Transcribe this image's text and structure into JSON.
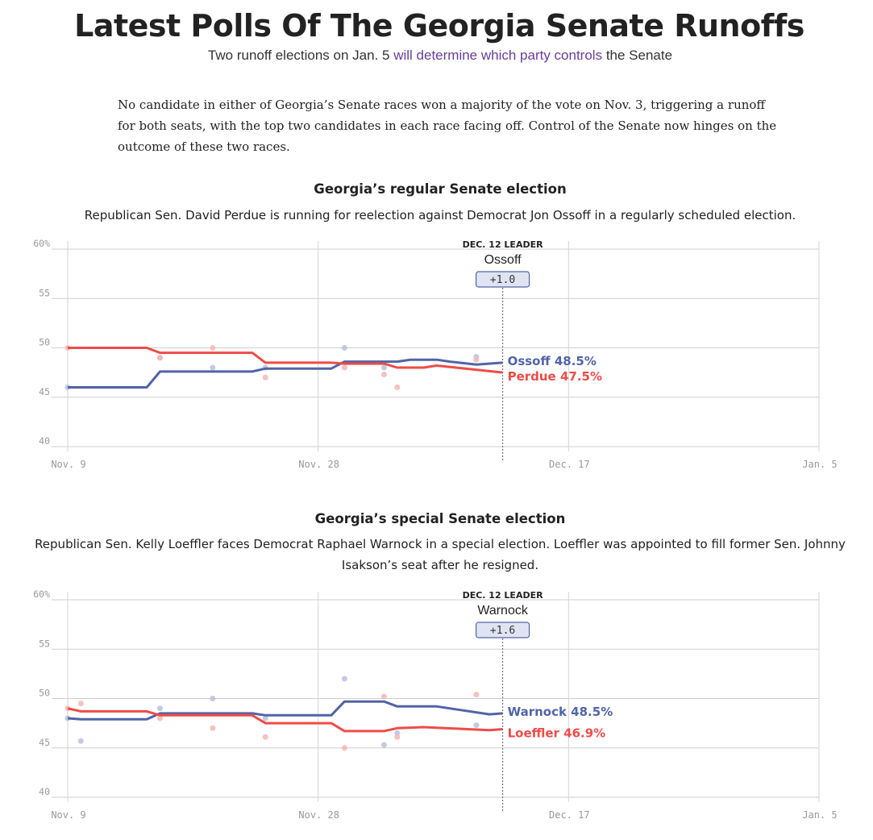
{
  "page": {
    "title": "Latest Polls Of The Georgia Senate Runoffs",
    "subtitle_before": "Two runoff elections on Jan. 5 ",
    "subtitle_link": "will determine which party controls",
    "subtitle_after": " the Senate",
    "intro": "No candidate in either of Georgia’s Senate races won a majority of the vote on Nov. 3, triggering a runoff for both seats, with the top two candidates in each race facing off. Control of the Senate now hinges on the outcome of these two races."
  },
  "colors": {
    "dem": "#5064a8",
    "rep": "#ee4c48",
    "dem_dot": "#b8c1e0",
    "rep_dot": "#f7b6b4"
  },
  "chart_data": [
    {
      "type": "line",
      "title": "Georgia’s regular Senate election",
      "description": "Republican Sen. David Perdue is running for reelection against Democrat Jon Ossoff in a regularly scheduled election.",
      "xlabel": "",
      "ylabel": "",
      "x_range_days": [
        0,
        57
      ],
      "x_ticks": [
        {
          "day": 0,
          "label": "Nov. 9"
        },
        {
          "day": 19,
          "label": "Nov. 28"
        },
        {
          "day": 38,
          "label": "Dec. 17"
        },
        {
          "day": 57,
          "label": "Jan. 5"
        }
      ],
      "ylim": [
        40,
        60
      ],
      "y_ticks": [
        {
          "value": 60,
          "label": "60%"
        },
        {
          "value": 55,
          "label": "55"
        },
        {
          "value": 50,
          "label": "50"
        },
        {
          "value": 45,
          "label": "45"
        },
        {
          "value": 40,
          "label": "40"
        }
      ],
      "grid": true,
      "leader": {
        "day": 33,
        "heading": "DEC. 12 LEADER",
        "name": "Ossoff",
        "margin": "+1.0"
      },
      "series": [
        {
          "name": "Ossoff",
          "party": "dem",
          "end_label": "Ossoff 48.5%",
          "x": [
            0,
            6,
            7,
            14,
            15,
            20,
            21,
            25,
            26,
            28,
            29,
            31,
            33
          ],
          "values": [
            46,
            46,
            47.6,
            47.6,
            47.9,
            47.9,
            48.6,
            48.6,
            48.8,
            48.8,
            48.6,
            48.3,
            48.5
          ]
        },
        {
          "name": "Perdue",
          "party": "rep",
          "end_label": "Perdue 47.5%",
          "x": [
            0,
            6,
            7,
            14,
            15,
            20,
            21,
            24,
            25,
            27,
            28,
            33
          ],
          "values": [
            50,
            50,
            49.5,
            49.5,
            48.5,
            48.5,
            48.4,
            48.4,
            48,
            48,
            48.2,
            47.5
          ]
        }
      ],
      "polls": [
        {
          "party": "dem",
          "x": [
            0,
            7,
            11,
            15,
            21,
            24,
            31
          ],
          "values": [
            46,
            49,
            48,
            48,
            50,
            48,
            49.1
          ]
        },
        {
          "party": "rep",
          "x": [
            0,
            7,
            11,
            15,
            21,
            24,
            25,
            31
          ],
          "values": [
            50,
            49,
            50,
            47,
            48,
            47.3,
            46,
            48.8
          ]
        }
      ]
    },
    {
      "type": "line",
      "title": "Georgia’s special Senate election",
      "description": "Republican Sen. Kelly Loeffler faces Democrat Raphael Warnock in a special election. Loeffler was appointed to fill former Sen. Johnny Isakson’s seat after he resigned.",
      "xlabel": "",
      "ylabel": "",
      "x_range_days": [
        0,
        57
      ],
      "x_ticks": [
        {
          "day": 0,
          "label": "Nov. 9"
        },
        {
          "day": 19,
          "label": "Nov. 28"
        },
        {
          "day": 38,
          "label": "Dec. 17"
        },
        {
          "day": 57,
          "label": "Jan. 5"
        }
      ],
      "ylim": [
        40,
        60
      ],
      "y_ticks": [
        {
          "value": 60,
          "label": "60%"
        },
        {
          "value": 55,
          "label": "55"
        },
        {
          "value": 50,
          "label": "50"
        },
        {
          "value": 45,
          "label": "45"
        },
        {
          "value": 40,
          "label": "40"
        }
      ],
      "grid": true,
      "leader": {
        "day": 33,
        "heading": "DEC. 12 LEADER",
        "name": "Warnock",
        "margin": "+1.6"
      },
      "series": [
        {
          "name": "Warnock",
          "party": "dem",
          "end_label": "Warnock 48.5%",
          "x": [
            0,
            1,
            6,
            7,
            14,
            15,
            20,
            21,
            24,
            25,
            28,
            32,
            33
          ],
          "values": [
            48,
            47.9,
            47.9,
            48.5,
            48.5,
            48.3,
            48.3,
            49.7,
            49.7,
            49.2,
            49.2,
            48.4,
            48.5
          ]
        },
        {
          "name": "Loeffler",
          "party": "rep",
          "end_label": "Loeffler 46.9%",
          "x": [
            0,
            1,
            6,
            7,
            14,
            15,
            20,
            21,
            24,
            25,
            27,
            32,
            33
          ],
          "values": [
            49,
            48.7,
            48.7,
            48.3,
            48.3,
            47.5,
            47.5,
            46.7,
            46.7,
            47,
            47.1,
            46.8,
            46.9
          ]
        }
      ],
      "polls": [
        {
          "party": "dem",
          "x": [
            0,
            1,
            7,
            11,
            15,
            21,
            24,
            25,
            31
          ],
          "values": [
            48,
            45.7,
            49,
            50,
            48,
            52,
            45.3,
            46.5,
            47.3
          ]
        },
        {
          "party": "rep",
          "x": [
            0,
            1,
            7,
            11,
            15,
            21,
            24,
            25,
            31
          ],
          "values": [
            49,
            49.5,
            48,
            47,
            46.1,
            45,
            50.2,
            46.1,
            50.4
          ]
        }
      ]
    }
  ]
}
